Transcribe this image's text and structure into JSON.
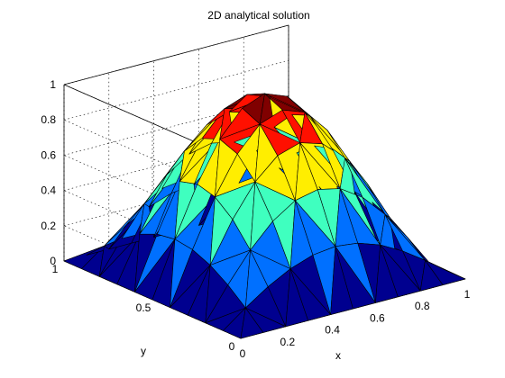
{
  "chart_data": {
    "type": "surface",
    "title": "2D analytical solution",
    "xlabel": "x",
    "ylabel": "y",
    "zlabel": "",
    "function": "sin(pi*x)*sin(pi*y)",
    "xlim": [
      0,
      1
    ],
    "ylim": [
      0,
      1
    ],
    "zlim": [
      0,
      1
    ],
    "x_ticks": [
      0,
      0.2,
      0.4,
      0.6,
      0.8,
      1
    ],
    "x_tick_labels": [
      "0",
      "0.2",
      "0.4",
      "0.6",
      "0.8",
      "1"
    ],
    "y_ticks": [
      0,
      0.5,
      1
    ],
    "y_tick_labels": [
      "0",
      "0.5",
      "1"
    ],
    "z_ticks": [
      0,
      0.2,
      0.4,
      0.6,
      0.8,
      1
    ],
    "z_tick_labels": [
      "0",
      "0.2",
      "0.4",
      "0.6",
      "0.8",
      "1"
    ],
    "peak": {
      "x": 0.5,
      "y": 0.5,
      "z": 1
    },
    "grid": true,
    "colormap": "jet",
    "colormap_colors": [
      "#00008f",
      "#0070ff",
      "#3fffbf",
      "#ffee00",
      "#ff1000",
      "#800000"
    ],
    "color_bands": [
      0,
      0.2,
      0.4,
      0.6,
      0.8,
      0.95,
      1
    ],
    "edge_color": "#000000"
  }
}
